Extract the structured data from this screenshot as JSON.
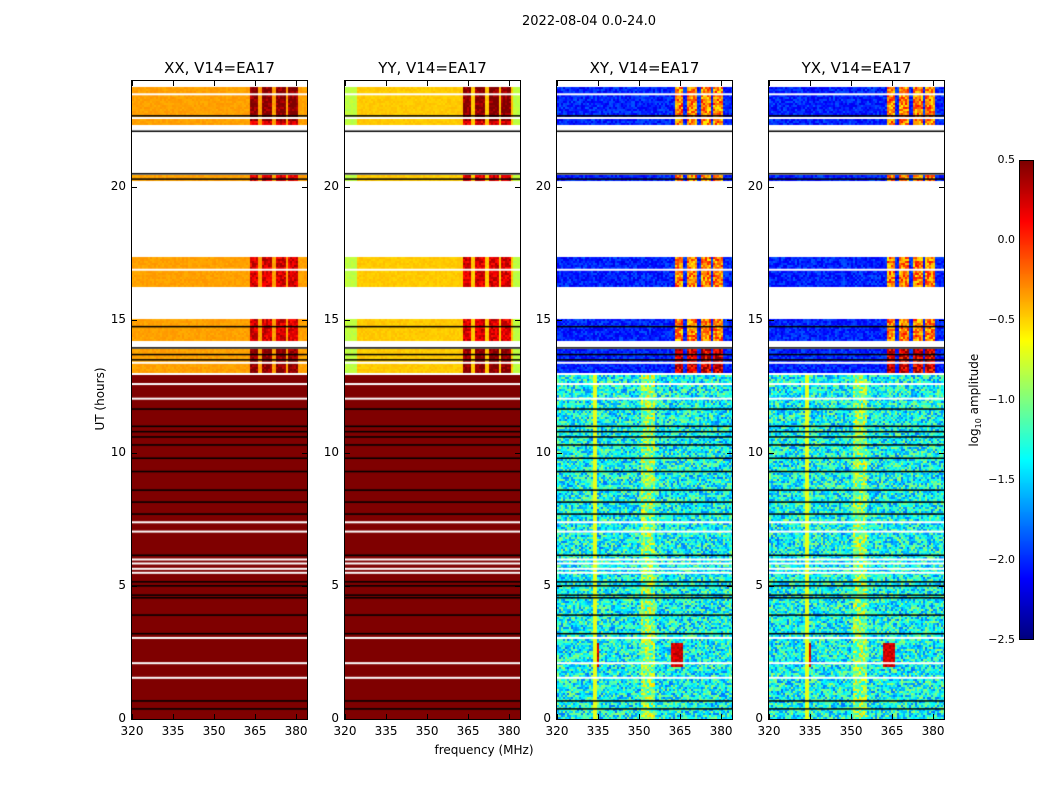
{
  "title": "2022-08-04 0.0-24.0",
  "chart_data": {
    "type": "heatmap",
    "title": "2022-08-04 0.0-24.0",
    "xlabel": "frequency (MHz)",
    "ylabel": "UT (hours)",
    "xlim": [
      320,
      384
    ],
    "ylim": [
      0,
      24
    ],
    "xticks": [
      "320",
      "335",
      "350",
      "365",
      "380"
    ],
    "xtick_values": [
      320,
      335,
      350,
      365,
      380
    ],
    "yticks": [
      "0",
      "5",
      "10",
      "15",
      "20"
    ],
    "ytick_values": [
      0,
      5,
      10,
      15,
      20
    ],
    "panels": [
      {
        "title": "XX, V14=EA17",
        "kind": "parallel"
      },
      {
        "title": "YY, V14=EA17",
        "kind": "parallel"
      },
      {
        "title": "XY, V14=EA17",
        "kind": "cross"
      },
      {
        "title": "YX, V14=EA17",
        "kind": "cross"
      }
    ],
    "data_time_ranges_hours": [
      [
        0,
        13.0
      ],
      [
        13.05,
        13.95
      ],
      [
        14.25,
        15.1
      ],
      [
        16.3,
        17.4
      ],
      [
        20.3,
        20.5
      ],
      [
        21.9,
        21.96
      ],
      [
        22.4,
        22.6
      ],
      [
        22.7,
        23.8
      ]
    ],
    "blank_rows_hours": [
      12.6,
      12.05,
      7.4,
      7.05,
      6.0,
      5.85,
      5.65,
      5.5,
      3.05,
      2.1,
      1.55,
      23.5,
      16.9,
      13.4
    ],
    "flagged_rows_hours": [
      11.65,
      11.0,
      10.8,
      10.6,
      10.3,
      9.8,
      9.3,
      8.6,
      8.15,
      7.7,
      6.15,
      5.15,
      5.0,
      4.65,
      4.55,
      3.9,
      3.2,
      0.67,
      0.37,
      22.68,
      22.1,
      20.5,
      20.3,
      14.75,
      13.95,
      13.7,
      13.5
    ],
    "colorbar": {
      "label": "log10 amplitude",
      "label_main": "log",
      "label_sub": "10",
      "label_rest": " amplitude",
      "range": [
        -2.5,
        0.5
      ],
      "ticks": [
        "0.5",
        "0.0",
        "−0.5",
        "−1.0",
        "−1.5",
        "−2.0",
        "−2.5"
      ],
      "tick_values": [
        0.5,
        0.0,
        -0.5,
        -1.0,
        -1.5,
        -2.0,
        -2.5
      ],
      "colormap": "jet"
    }
  }
}
